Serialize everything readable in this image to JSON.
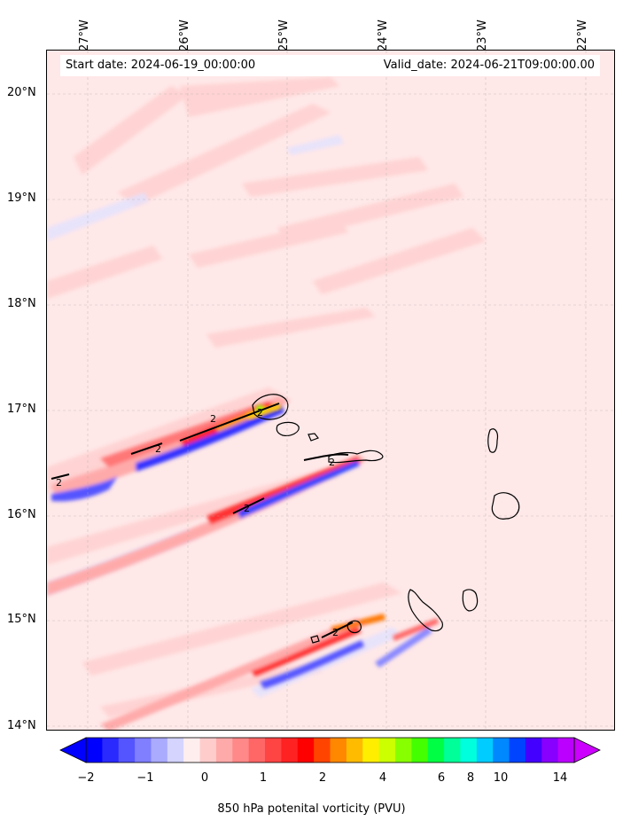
{
  "header": {
    "start_date": "Start date: 2024-06-19_00:00:00",
    "valid_date": "Valid_date: 2024-06-21T09:00:00.00"
  },
  "axes": {
    "longitude_labels": [
      "27°W",
      "26°W",
      "25°W",
      "24°W",
      "23°W",
      "22°W"
    ],
    "latitude_labels": [
      "20°N",
      "19°N",
      "18°N",
      "17°N",
      "16°N",
      "15°N",
      "14°N"
    ]
  },
  "colorbar": {
    "label": "850 hPa potenital vorticity (PVU)",
    "tick_labels": [
      "−2",
      "−1",
      "0",
      "1",
      "2",
      "4",
      "6",
      "8",
      "10",
      "14"
    ],
    "colors": [
      "#0000ff",
      "#2a2aff",
      "#5555ff",
      "#7f7fff",
      "#aaaaff",
      "#d4d4ff",
      "#ffeeee",
      "#ffcccc",
      "#ffaaaa",
      "#ff8888",
      "#ff6666",
      "#ff4444",
      "#ff2222",
      "#ff0000",
      "#ff4400",
      "#ff8800",
      "#ffbb00",
      "#ffee00",
      "#ccff00",
      "#88ff00",
      "#44ff00",
      "#00ff44",
      "#00ff99",
      "#00ffdd",
      "#00ccff",
      "#0088ff",
      "#0044ff",
      "#4400ff",
      "#8800ff",
      "#bb00ff"
    ],
    "extend_low_color": "#0000ff",
    "extend_high_color": "#cc00ff"
  },
  "contour_labels": [
    "2",
    "2",
    "2",
    "2",
    "2",
    "2",
    "2"
  ],
  "map": {
    "field": "850 hPa potential vorticity",
    "region": "Cabo Verde"
  }
}
